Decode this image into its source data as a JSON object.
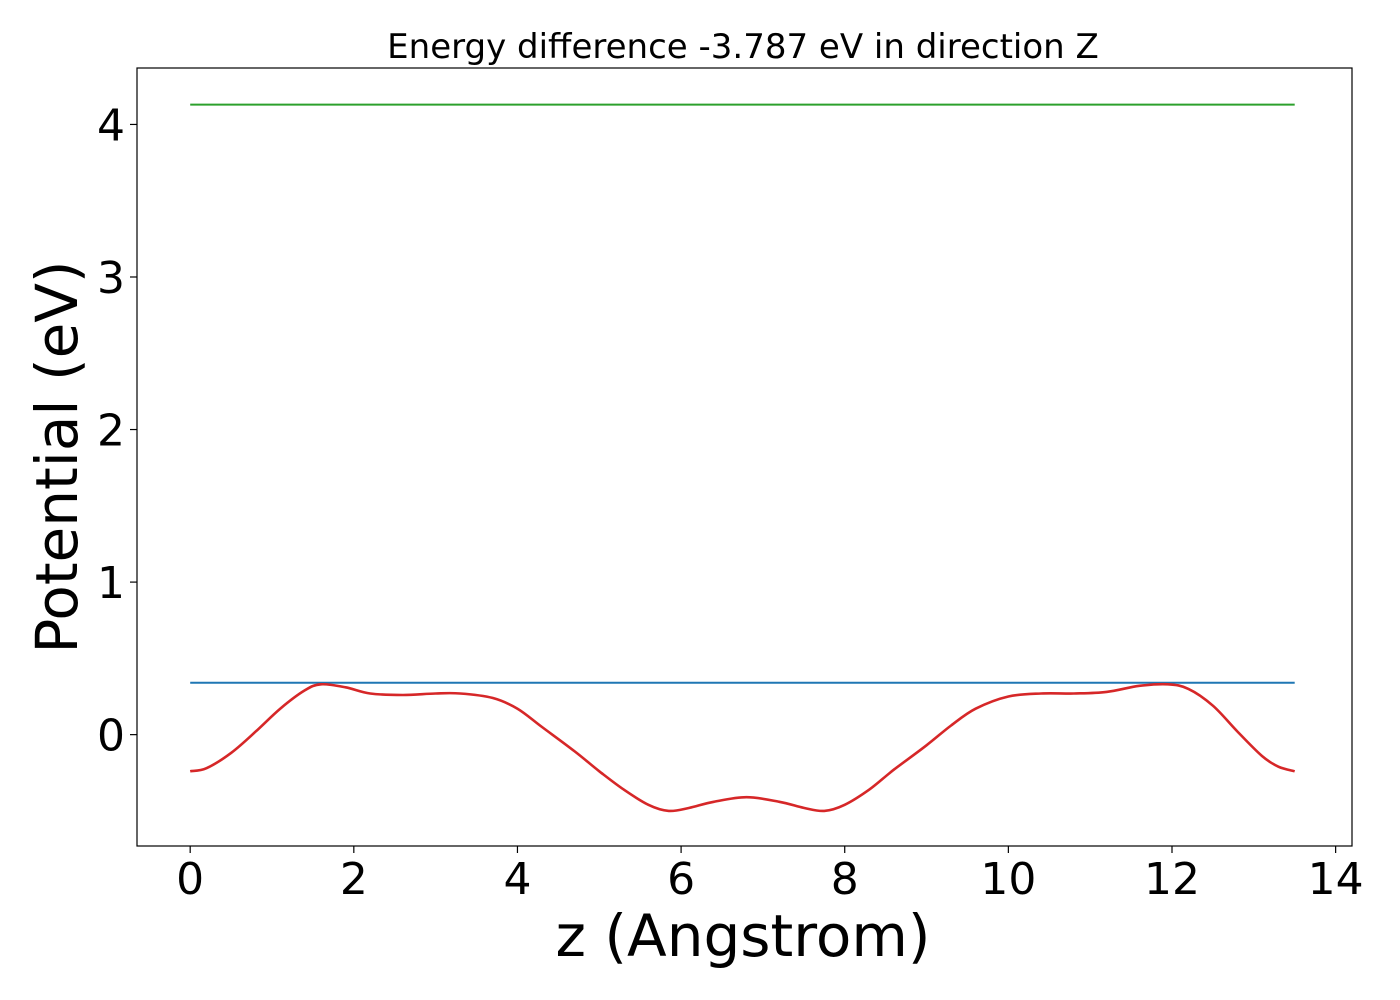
{
  "chart_data": {
    "type": "line",
    "title": "Energy difference -3.787 eV in direction Z",
    "xlabel": "z (Angstrom)",
    "ylabel": "Potential (eV)",
    "xlim": [
      -0.65,
      14.2
    ],
    "ylim": [
      -0.73,
      4.37
    ],
    "xticks": [
      0,
      2,
      4,
      6,
      8,
      10,
      12,
      14
    ],
    "yticks": [
      0,
      1,
      2,
      3,
      4
    ],
    "grid": false,
    "legend": "none",
    "series": [
      {
        "color": "#2ca02c",
        "x": [
          0,
          13.5
        ],
        "y": [
          4.13,
          4.13
        ]
      },
      {
        "color": "#1f77b4",
        "x": [
          0,
          13.5
        ],
        "y": [
          0.34,
          0.34
        ]
      },
      {
        "color": "#d62728",
        "x": [
          0,
          0.2,
          0.5,
          0.8,
          1.1,
          1.4,
          1.6,
          1.9,
          2.2,
          2.6,
          3.0,
          3.3,
          3.7,
          4.0,
          4.3,
          4.7,
          5.0,
          5.3,
          5.6,
          5.85,
          6.1,
          6.4,
          6.8,
          7.2,
          7.5,
          7.75,
          8.0,
          8.3,
          8.6,
          9.0,
          9.3,
          9.6,
          10.0,
          10.4,
          10.8,
          11.2,
          11.6,
          11.95,
          12.2,
          12.5,
          12.8,
          13.1,
          13.3,
          13.5
        ],
        "y": [
          -0.24,
          -0.22,
          -0.12,
          0.02,
          0.17,
          0.29,
          0.33,
          0.31,
          0.27,
          0.26,
          0.27,
          0.27,
          0.24,
          0.17,
          0.05,
          -0.11,
          -0.24,
          -0.36,
          -0.46,
          -0.5,
          -0.48,
          -0.44,
          -0.41,
          -0.44,
          -0.48,
          -0.5,
          -0.46,
          -0.36,
          -0.23,
          -0.07,
          0.06,
          0.17,
          0.25,
          0.27,
          0.27,
          0.28,
          0.32,
          0.33,
          0.3,
          0.19,
          0.02,
          -0.14,
          -0.21,
          -0.24
        ]
      }
    ]
  }
}
